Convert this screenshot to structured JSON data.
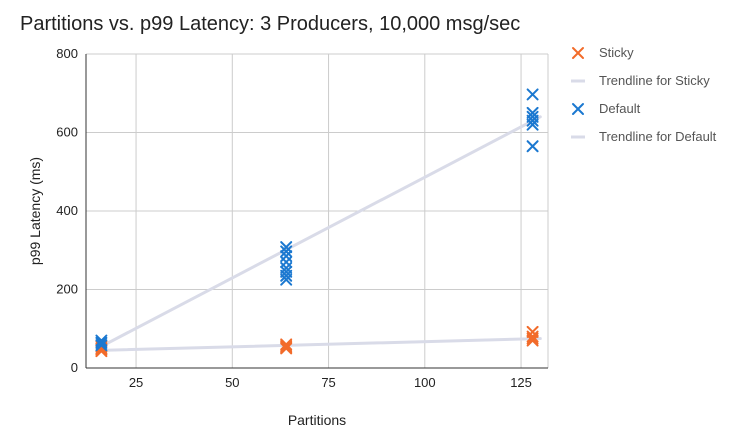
{
  "chart_data": {
    "type": "scatter",
    "title": "Partitions vs. p99 Latency: 3 Producers, 10,000 msg/sec",
    "xlabel": "Partitions",
    "ylabel": "p99 Latency (ms)",
    "xlim": [
      12,
      132
    ],
    "ylim": [
      0,
      800
    ],
    "xticks": [
      25,
      50,
      75,
      100,
      125
    ],
    "yticks": [
      0,
      200,
      400,
      600,
      800
    ],
    "grid": true,
    "legend_position": "right",
    "series": [
      {
        "name": "Sticky",
        "marker": "x",
        "color": "#f26b2a",
        "points": [
          {
            "x": 16,
            "y": 43
          },
          {
            "x": 16,
            "y": 47
          },
          {
            "x": 16,
            "y": 50
          },
          {
            "x": 16,
            "y": 55
          },
          {
            "x": 64,
            "y": 50
          },
          {
            "x": 64,
            "y": 53
          },
          {
            "x": 64,
            "y": 56
          },
          {
            "x": 64,
            "y": 60
          },
          {
            "x": 128,
            "y": 70
          },
          {
            "x": 128,
            "y": 75
          },
          {
            "x": 128,
            "y": 80
          },
          {
            "x": 128,
            "y": 92
          }
        ]
      },
      {
        "name": "Trendline for Sticky",
        "type": "line",
        "color": "#d9dbe8",
        "points": [
          {
            "x": 16,
            "y": 45
          },
          {
            "x": 130,
            "y": 75
          }
        ]
      },
      {
        "name": "Default",
        "marker": "x",
        "color": "#1b78d0",
        "points": [
          {
            "x": 16,
            "y": 58
          },
          {
            "x": 16,
            "y": 64
          },
          {
            "x": 16,
            "y": 70
          },
          {
            "x": 64,
            "y": 225
          },
          {
            "x": 64,
            "y": 235
          },
          {
            "x": 64,
            "y": 245
          },
          {
            "x": 64,
            "y": 255
          },
          {
            "x": 64,
            "y": 270
          },
          {
            "x": 64,
            "y": 285
          },
          {
            "x": 64,
            "y": 297
          },
          {
            "x": 64,
            "y": 308
          },
          {
            "x": 128,
            "y": 565
          },
          {
            "x": 128,
            "y": 620
          },
          {
            "x": 128,
            "y": 630
          },
          {
            "x": 128,
            "y": 640
          },
          {
            "x": 128,
            "y": 650
          },
          {
            "x": 128,
            "y": 697
          }
        ]
      },
      {
        "name": "Trendline for Default",
        "type": "line",
        "color": "#d9dbe8",
        "points": [
          {
            "x": 16,
            "y": 55
          },
          {
            "x": 130,
            "y": 640
          }
        ]
      }
    ]
  }
}
